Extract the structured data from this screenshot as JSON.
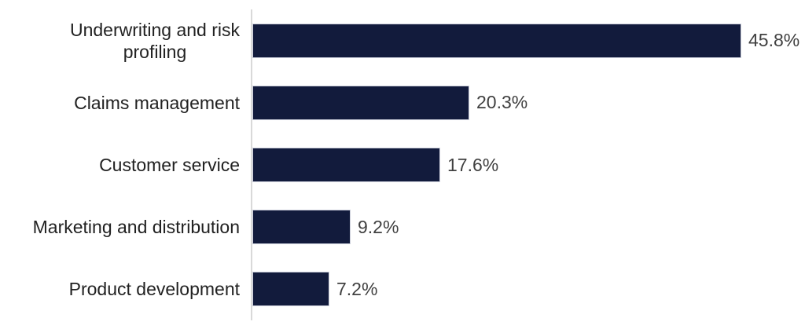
{
  "chart_data": {
    "type": "bar",
    "orientation": "horizontal",
    "title": "",
    "xlabel": "",
    "ylabel": "",
    "categories": [
      "Underwriting and risk\nprofiling",
      "Claims management",
      "Customer service",
      "Marketing and distribution",
      "Product development"
    ],
    "values": [
      45.8,
      20.3,
      17.6,
      9.2,
      7.2
    ],
    "value_labels": [
      "45.8%",
      "20.3%",
      "17.6%",
      "9.2%",
      "7.2%"
    ],
    "xlim": [
      0,
      50
    ],
    "grid": false,
    "legend": false,
    "bar_color": "#121b3c",
    "category_label_color": "#212121",
    "value_label_color": "#404040",
    "axis_line_color": "#d9d9d9"
  }
}
